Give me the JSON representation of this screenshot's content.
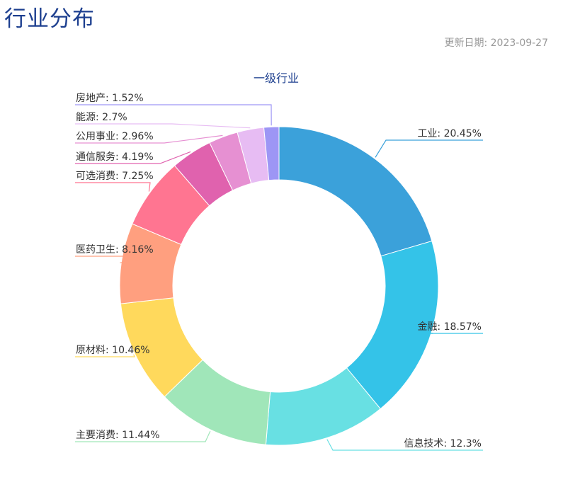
{
  "page": {
    "title": "行业分布",
    "update_date": "更新日期: 2023-09-27"
  },
  "chart_data": {
    "type": "pie",
    "variant": "donut",
    "title": "一级行业",
    "label_format": "name: value%",
    "slices": [
      {
        "name": "工业",
        "value": 20.45,
        "color": "#3ba1da"
      },
      {
        "name": "金融",
        "value": 18.57,
        "color": "#34c3e8"
      },
      {
        "name": "信息技术",
        "value": 12.3,
        "color": "#68e0e3"
      },
      {
        "name": "主要消费",
        "value": 11.44,
        "color": "#a0e6b9"
      },
      {
        "name": "原材料",
        "value": 10.46,
        "color": "#ffd95c"
      },
      {
        "name": "医药卫生",
        "value": 8.16,
        "color": "#ff9f7f"
      },
      {
        "name": "可选消费",
        "value": 7.25,
        "color": "#ff7591"
      },
      {
        "name": "通信服务",
        "value": 4.19,
        "color": "#e062ae"
      },
      {
        "name": "公用事业",
        "value": 2.96,
        "color": "#e690d2"
      },
      {
        "name": "能源",
        "value": 2.7,
        "color": "#e7bcf3"
      },
      {
        "name": "房地产",
        "value": 1.52,
        "color": "#9d96f5"
      }
    ],
    "title_color": "#1d3f8f"
  }
}
